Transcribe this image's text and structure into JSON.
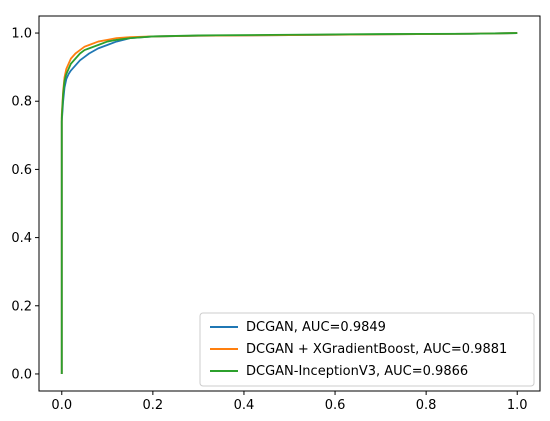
{
  "chart_data": {
    "type": "line",
    "xlim": [
      -0.05,
      1.05
    ],
    "ylim": [
      -0.05,
      1.05
    ],
    "x_ticks": [
      "0.0",
      "0.2",
      "0.4",
      "0.6",
      "0.8",
      "1.0"
    ],
    "y_ticks": [
      "0.0",
      "0.2",
      "0.4",
      "0.6",
      "0.8",
      "1.0"
    ],
    "grid": false,
    "legend_position": "lower-right",
    "series": [
      {
        "name": "DCGAN, AUC=0.9849",
        "color": "#1f77b4",
        "x": [
          0,
          0.0,
          0.003,
          0.006,
          0.01,
          0.015,
          0.02,
          0.03,
          0.04,
          0.05,
          0.06,
          0.08,
          0.1,
          0.12,
          0.15,
          0.2,
          0.3,
          0.5,
          0.7,
          0.9,
          1.0
        ],
        "y": [
          0,
          0.74,
          0.8,
          0.84,
          0.865,
          0.88,
          0.89,
          0.905,
          0.92,
          0.93,
          0.94,
          0.955,
          0.965,
          0.975,
          0.985,
          0.99,
          0.992,
          0.994,
          0.996,
          0.998,
          1.0
        ]
      },
      {
        "name": "DCGAN + XGradientBoost, AUC=0.9881",
        "color": "#ff7f0e",
        "x": [
          0,
          0.0,
          0.003,
          0.006,
          0.01,
          0.015,
          0.02,
          0.03,
          0.04,
          0.05,
          0.06,
          0.08,
          0.1,
          0.12,
          0.15,
          0.2,
          0.3,
          0.5,
          0.7,
          0.9,
          1.0
        ],
        "y": [
          0,
          0.76,
          0.83,
          0.87,
          0.895,
          0.91,
          0.925,
          0.94,
          0.95,
          0.96,
          0.965,
          0.975,
          0.98,
          0.985,
          0.988,
          0.99,
          0.992,
          0.994,
          0.996,
          0.998,
          1.0
        ]
      },
      {
        "name": "DCGAN-InceptionV3, AUC=0.9866",
        "color": "#2ca02c",
        "x": [
          0,
          0.0,
          0.003,
          0.006,
          0.01,
          0.015,
          0.02,
          0.03,
          0.04,
          0.05,
          0.06,
          0.08,
          0.1,
          0.12,
          0.15,
          0.2,
          0.3,
          0.5,
          0.7,
          0.9,
          1.0
        ],
        "y": [
          0,
          0.75,
          0.82,
          0.86,
          0.88,
          0.895,
          0.91,
          0.925,
          0.94,
          0.95,
          0.955,
          0.965,
          0.975,
          0.98,
          0.985,
          0.99,
          0.993,
          0.995,
          0.997,
          0.998,
          1.0
        ]
      }
    ]
  }
}
